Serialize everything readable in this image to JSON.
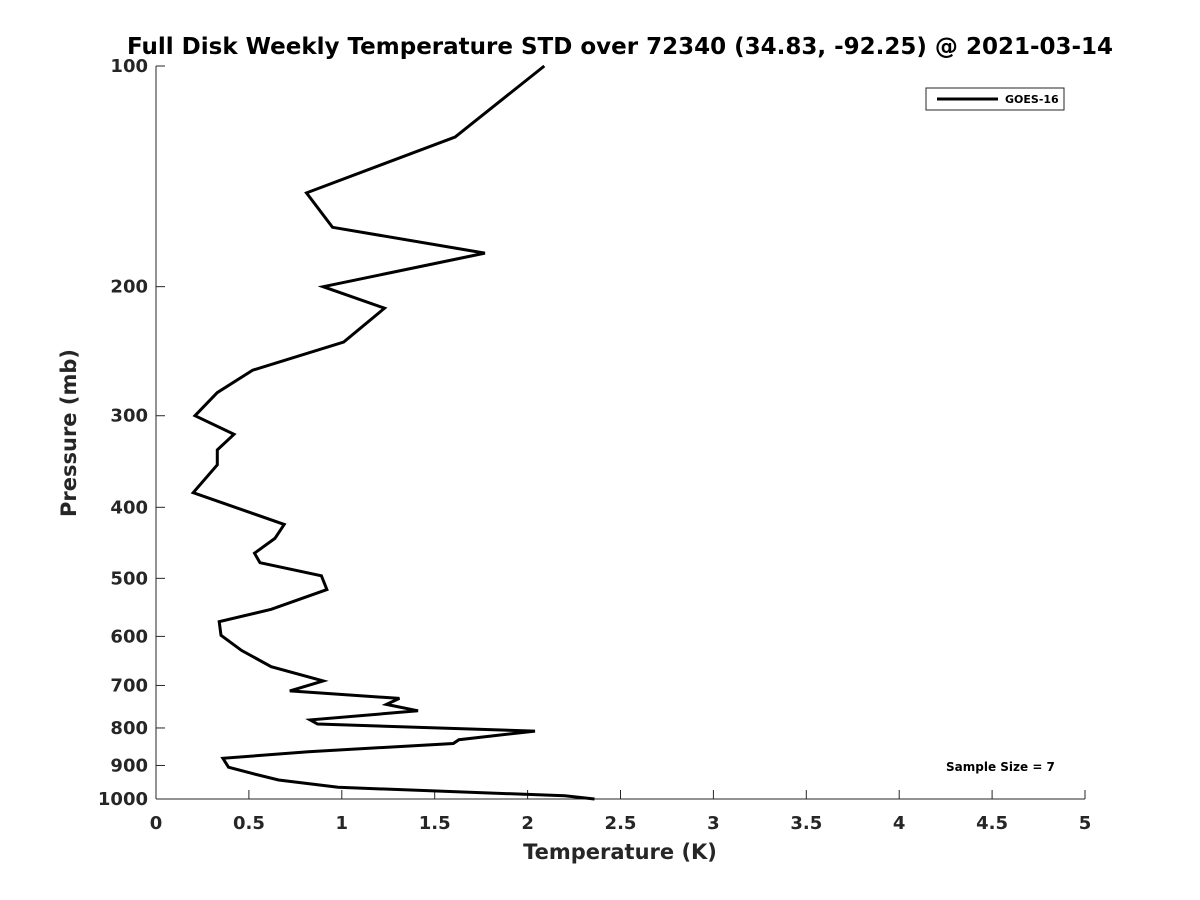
{
  "chart_data": {
    "type": "line",
    "title": "Full Disk Weekly Temperature STD over 72340 (34.83, -92.25) @ 2021-03-14",
    "xlabel": "Temperature (K)",
    "ylabel": "Pressure (mb)",
    "xlim": [
      0,
      5
    ],
    "ylim": [
      100,
      1000
    ],
    "y_scale": "log",
    "y_reversed": true,
    "x_ticks": [
      "0",
      "0.5",
      "1",
      "1.5",
      "2",
      "2.5",
      "3",
      "3.5",
      "4",
      "4.5",
      "5"
    ],
    "y_ticks": [
      "100",
      "200",
      "300",
      "400",
      "500",
      "600",
      "700",
      "800",
      "900",
      "1000"
    ],
    "grid": false,
    "legend": {
      "placement": "top-right",
      "entries": [
        "GOES-16"
      ]
    },
    "annotation": "Sample Size = 7",
    "series": [
      {
        "name": "GOES-16",
        "color": "#000000",
        "points": [
          [
            2.09,
            100
          ],
          [
            1.61,
            125
          ],
          [
            0.81,
            149
          ],
          [
            0.95,
            166
          ],
          [
            1.77,
            180
          ],
          [
            0.9,
            200
          ],
          [
            1.23,
            214
          ],
          [
            1.01,
            238
          ],
          [
            0.52,
            260
          ],
          [
            0.33,
            279
          ],
          [
            0.21,
            300
          ],
          [
            0.42,
            318
          ],
          [
            0.33,
            334
          ],
          [
            0.33,
            350
          ],
          [
            0.2,
            382
          ],
          [
            0.69,
            422
          ],
          [
            0.64,
            441
          ],
          [
            0.53,
            462
          ],
          [
            0.56,
            476
          ],
          [
            0.89,
            496
          ],
          [
            0.92,
            518
          ],
          [
            0.62,
            551
          ],
          [
            0.34,
            573
          ],
          [
            0.35,
            598
          ],
          [
            0.46,
            627
          ],
          [
            0.62,
            660
          ],
          [
            0.9,
            690
          ],
          [
            0.72,
            712
          ],
          [
            1.31,
            729
          ],
          [
            1.24,
            743
          ],
          [
            1.41,
            758
          ],
          [
            0.83,
            780
          ],
          [
            0.87,
            790
          ],
          [
            2.04,
            808
          ],
          [
            1.63,
            830
          ],
          [
            1.6,
            840
          ],
          [
            0.82,
            862
          ],
          [
            0.36,
            880
          ],
          [
            0.39,
            905
          ],
          [
            0.51,
            922
          ],
          [
            0.66,
            942
          ],
          [
            0.98,
            964
          ],
          [
            2.2,
            990
          ],
          [
            2.36,
            1000
          ]
        ]
      }
    ]
  }
}
